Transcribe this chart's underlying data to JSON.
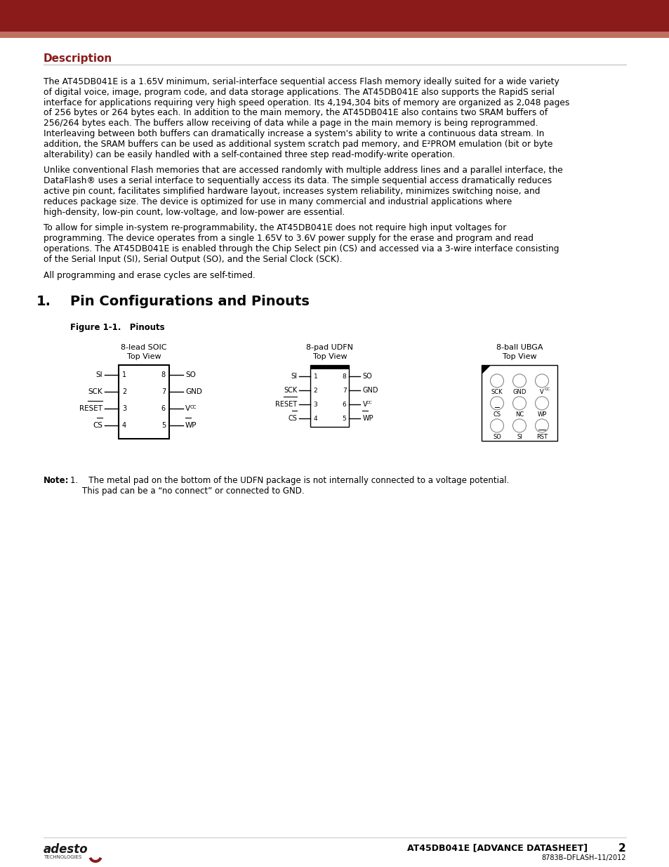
{
  "header_color": "#8B1A1A",
  "header_stripe_color": "#C07060",
  "background_color": "#FFFFFF",
  "description_title": "Description",
  "description_title_color": "#8B1A1A",
  "footer_doc": "AT45DB041E [ADVANCE DATASHEET]",
  "footer_page": "2",
  "footer_sub": "8783B–DFLASH–11/2012",
  "desc_para1_lines": [
    "The AT45DB041E is a 1.65V minimum, serial-interface sequential access Flash memory ideally suited for a wide variety",
    "of digital voice, image, program code, and data storage applications. The AT45DB041E also supports the RapidS serial",
    "interface for applications requiring very high speed operation. Its 4,194,304 bits of memory are organized as 2,048 pages",
    "of 256 bytes or 264 bytes each. In addition to the main memory, the AT45DB041E also contains two SRAM buffers of",
    "256/264 bytes each. The buffers allow receiving of data while a page in the main memory is being reprogrammed.",
    "Interleaving between both buffers can dramatically increase a system's ability to write a continuous data stream. In",
    "addition, the SRAM buffers can be used as additional system scratch pad memory, and E²PROM emulation (bit or byte",
    "alterability) can be easily handled with a self-contained three step read-modify-write operation."
  ],
  "desc_para2_lines": [
    "Unlike conventional Flash memories that are accessed randomly with multiple address lines and a parallel interface, the",
    "DataFlash® uses a serial interface to sequentially access its data. The simple sequential access dramatically reduces",
    "active pin count, facilitates simplified hardware layout, increases system reliability, minimizes switching noise, and",
    "reduces package size. The device is optimized for use in many commercial and industrial applications where",
    "high-density, low-pin count, low-voltage, and low-power are essential."
  ],
  "desc_para3_lines": [
    "To allow for simple in-system re-programmability, the AT45DB041E does not require high input voltages for",
    "programming. The device operates from a single 1.65V to 3.6V power supply for the erase and program and read",
    "operations. The AT45DB041E is enabled through the Chip Select pin (CS) and accessed via a 3-wire interface consisting",
    "of the Serial Input (SI), Serial Output (SO), and the Serial Clock (SCK)."
  ],
  "desc_para4": "All programming and erase cycles are self-timed.",
  "soic_left_pins": [
    "SI",
    "SCK",
    "RESET",
    "CS"
  ],
  "soic_right_pins": [
    "SO",
    "GND",
    "VCC",
    "WP"
  ],
  "soic_left_nums": [
    "1",
    "2",
    "3",
    "4"
  ],
  "soic_right_nums": [
    "8",
    "7",
    "6",
    "5"
  ],
  "udfn_left_pins": [
    "SI",
    "SCK",
    "RESET",
    "CS"
  ],
  "udfn_right_pins": [
    "SO",
    "GND",
    "VCC",
    "WP"
  ],
  "udfn_left_nums": [
    "1",
    "2",
    "3",
    "4"
  ],
  "udfn_right_nums": [
    "8",
    "7",
    "6",
    "5"
  ],
  "ubga_labels": [
    [
      "SCK",
      "GND",
      "VCC"
    ],
    [
      "CS",
      "NC",
      "WP"
    ],
    [
      "SO",
      "SI",
      "RST"
    ]
  ],
  "ubga_overline": [
    [
      false,
      false,
      false
    ],
    [
      true,
      false,
      false
    ],
    [
      false,
      false,
      true
    ]
  ],
  "soic_overline_left": [
    false,
    false,
    true,
    true
  ],
  "soic_overline_right": [
    false,
    false,
    false,
    true
  ],
  "udfn_overline_left": [
    false,
    false,
    true,
    true
  ],
  "udfn_overline_right": [
    false,
    false,
    false,
    true
  ]
}
